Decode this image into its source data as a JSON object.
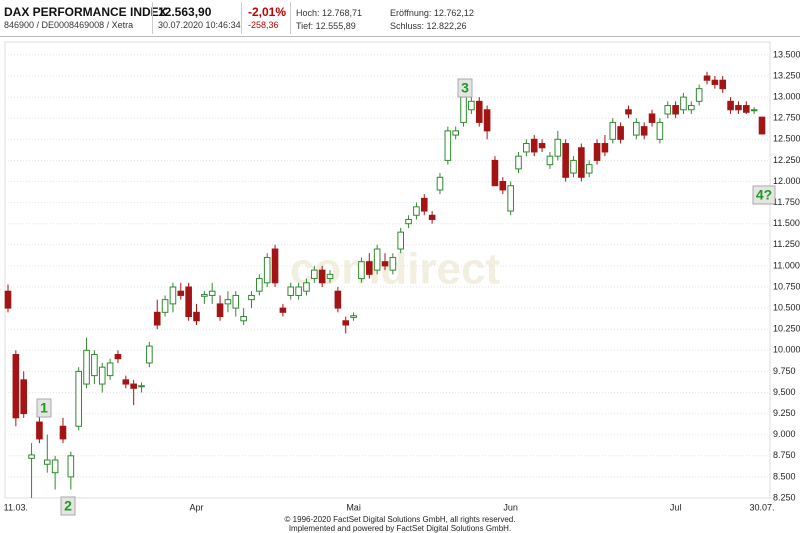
{
  "header": {
    "name": "DAX PERFORMANCE INDEX",
    "ids": "846900 / DE0008469008 / Xetra",
    "price": "12.563,90",
    "timestamp": "30.07.2020 10:46:34",
    "change_pct": "-2,01%",
    "change_abs": "-258,36",
    "high": "Hoch: 12.768,71",
    "low": "Tief: 12.555,89",
    "open": "Eröffnung: 12.762,12",
    "close": "Schluss: 12.822,26"
  },
  "footer": [
    "© 1996-2020 FactSet Digital Solutions GmbH, all rights reserved.",
    "Implemented and powered by FactSet Digital Solutions GmbH."
  ],
  "chart_data": {
    "type": "candlestick",
    "watermark": "comdirect",
    "up_color": "#2e8b2e",
    "down_color": "#a31515",
    "grid": true,
    "categories": [
      null,
      "11.03.",
      null,
      null,
      null,
      null,
      null,
      null,
      null,
      null,
      null,
      null,
      null,
      null,
      null,
      null,
      null,
      null,
      null,
      null,
      null,
      null,
      null,
      null,
      "Apr",
      null,
      null,
      null,
      null,
      null,
      null,
      null,
      null,
      null,
      null,
      null,
      null,
      null,
      null,
      null,
      null,
      null,
      null,
      null,
      "Mai",
      null,
      null,
      null,
      null,
      null,
      null,
      null,
      null,
      null,
      null,
      null,
      null,
      null,
      null,
      null,
      null,
      null,
      null,
      null,
      "Jun",
      null,
      null,
      null,
      null,
      null,
      null,
      null,
      null,
      null,
      null,
      null,
      null,
      null,
      null,
      null,
      null,
      null,
      null,
      null,
      null,
      "Jul",
      null,
      null,
      null,
      null,
      null,
      null,
      null,
      null,
      null,
      null,
      "30.07."
    ],
    "open": [
      10700,
      9950,
      9650,
      8720,
      9150,
      8650,
      8550,
      9100,
      8500,
      9100,
      9600,
      9700,
      9600,
      9700,
      9950,
      9650,
      9600,
      9570,
      9850,
      10450,
      10450,
      10550,
      10700,
      10750,
      10450,
      10640,
      10650,
      10550,
      10550,
      10500,
      10350,
      10600,
      10700,
      10800,
      11200,
      10500,
      10650,
      10650,
      10700,
      10850,
      10950,
      10850,
      10700,
      10350,
      10390,
      10850,
      11050,
      10950,
      11050,
      10950,
      11200,
      11500,
      11600,
      11800,
      11600,
      11900,
      12250,
      12550,
      12700,
      12850,
      12950,
      12850,
      12250,
      12000,
      11650,
      12150,
      12350,
      12500,
      12450,
      12200,
      12300,
      12450,
      12100,
      12400,
      12100,
      12450,
      12450,
      12500,
      12650,
      12850,
      12550,
      12650,
      12800,
      12500,
      12800,
      12900,
      12850,
      12850,
      12950,
      13250,
      13200,
      13200,
      12950,
      12900,
      12900,
      12840,
      12762.12
    ],
    "high": [
      10780,
      10000,
      9750,
      8900,
      9250,
      9000,
      8750,
      9200,
      8800,
      9800,
      10150,
      10000,
      9850,
      9900,
      10000,
      9700,
      9650,
      9620,
      10100,
      10600,
      10650,
      10800,
      10800,
      10800,
      10550,
      10700,
      10800,
      10650,
      10700,
      10700,
      10500,
      10700,
      10900,
      11150,
      11250,
      10550,
      10800,
      10800,
      10850,
      11000,
      11000,
      10950,
      10750,
      10400,
      10450,
      11100,
      11150,
      11250,
      11150,
      11150,
      11450,
      11600,
      11750,
      11850,
      11650,
      12100,
      12650,
      12650,
      13050,
      13000,
      13000,
      12900,
      12300,
      12050,
      12000,
      12350,
      12500,
      12550,
      12500,
      12350,
      12600,
      12500,
      12300,
      12450,
      12250,
      12500,
      12550,
      12750,
      12700,
      12900,
      12750,
      12700,
      12850,
      12750,
      12950,
      12950,
      13050,
      12950,
      13150,
      13300,
      13250,
      13250,
      13000,
      12950,
      12950,
      12880,
      12768.71
    ],
    "low": [
      10450,
      9100,
      9200,
      8250,
      8900,
      8550,
      8350,
      8900,
      8350,
      9050,
      9550,
      9600,
      9500,
      9650,
      9850,
      9550,
      9350,
      9500,
      9800,
      10250,
      10400,
      10450,
      10600,
      10350,
      10300,
      10550,
      10550,
      10350,
      10450,
      10400,
      10300,
      10500,
      10650,
      10750,
      10750,
      10400,
      10600,
      10600,
      10650,
      10800,
      10750,
      10800,
      10450,
      10200,
      10350,
      10800,
      10850,
      10900,
      10950,
      10900,
      11150,
      11450,
      11550,
      11600,
      11500,
      11850,
      12200,
      12500,
      12650,
      12800,
      12650,
      12500,
      11950,
      11850,
      11600,
      12100,
      12300,
      12300,
      12350,
      12150,
      12250,
      12000,
      12050,
      12000,
      12050,
      12200,
      12300,
      12450,
      12450,
      12750,
      12500,
      12500,
      12650,
      12450,
      12750,
      12750,
      12800,
      12800,
      12900,
      13150,
      13100,
      13050,
      12800,
      12800,
      12800,
      12800,
      12555.89
    ],
    "close": [
      10500,
      9200,
      9250,
      8760,
      8950,
      8700,
      8700,
      8950,
      8750,
      9750,
      10000,
      9950,
      9800,
      9850,
      9900,
      9600,
      9550,
      9580,
      10050,
      10300,
      10600,
      10750,
      10650,
      10400,
      10350,
      10660,
      10700,
      10400,
      10600,
      10650,
      10400,
      10650,
      10850,
      11100,
      10800,
      10450,
      10750,
      10750,
      10800,
      10950,
      10800,
      10900,
      10500,
      10300,
      10410,
      11050,
      10900,
      11200,
      11000,
      11100,
      11400,
      11550,
      11700,
      11650,
      11550,
      12050,
      12600,
      12600,
      13000,
      12950,
      12700,
      12600,
      11950,
      11900,
      11950,
      12300,
      12450,
      12350,
      12400,
      12300,
      12500,
      12050,
      12250,
      12050,
      12200,
      12250,
      12350,
      12700,
      12500,
      12800,
      12700,
      12550,
      12700,
      12700,
      12900,
      12800,
      13000,
      12900,
      13100,
      13200,
      13150,
      13100,
      12850,
      12850,
      12820,
      12850,
      12563.9
    ],
    "ylim": [
      8250,
      13500
    ],
    "yticks": [
      {
        "value": 8250,
        "label": "8.250"
      },
      {
        "value": 8500,
        "label": "8.500"
      },
      {
        "value": 8750,
        "label": "8.750"
      },
      {
        "value": 9000,
        "label": "9.000"
      },
      {
        "value": 9250,
        "label": "9.250"
      },
      {
        "value": 9500,
        "label": "9.500"
      },
      {
        "value": 9750,
        "label": "9.750"
      },
      {
        "value": 10000,
        "label": "10.000"
      },
      {
        "value": 10250,
        "label": "10.250"
      },
      {
        "value": 10500,
        "label": "10.500"
      },
      {
        "value": 10750,
        "label": "10.750"
      },
      {
        "value": 11000,
        "label": "11.000"
      },
      {
        "value": 11250,
        "label": "11.250"
      },
      {
        "value": 11500,
        "label": "11.500"
      },
      {
        "value": 11750,
        "label": "11.750"
      },
      {
        "value": 12000,
        "label": "12.000"
      },
      {
        "value": 12250,
        "label": "12.250"
      },
      {
        "value": 12500,
        "label": "12.500"
      },
      {
        "value": 12750,
        "label": "12.750"
      },
      {
        "value": 13000,
        "label": "13.000"
      },
      {
        "value": 13250,
        "label": "13.250"
      },
      {
        "value": 13500,
        "label": "13.500"
      }
    ],
    "annotations": [
      "1",
      "2",
      "3",
      "4?"
    ]
  }
}
